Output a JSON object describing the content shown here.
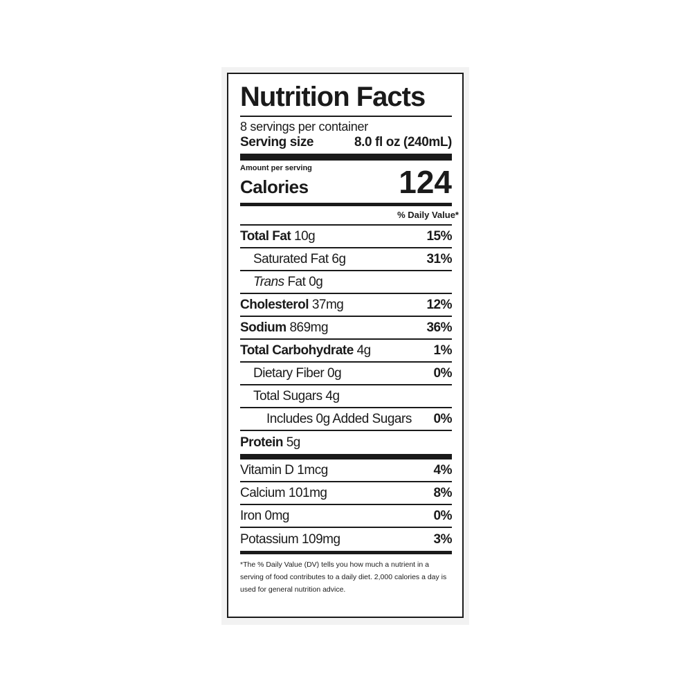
{
  "title": "Nutrition Facts",
  "servings": "8 servings per container",
  "serving_size": {
    "label": "Serving size",
    "value": "8.0 fl oz (240mL)"
  },
  "amount_per_serving": "Amount per serving",
  "calories": {
    "label": "Calories",
    "value": "124"
  },
  "dv_header": "% Daily Value*",
  "nutrients": [
    {
      "name": "Total Fat",
      "amount": "10g",
      "dv": "15%",
      "bold": true,
      "indent": 0
    },
    {
      "name": "Saturated Fat",
      "amount": "6g",
      "dv": "31%",
      "bold": false,
      "indent": 1
    },
    {
      "italic": "Trans",
      "name": "Fat",
      "amount": "0g",
      "bold": false,
      "indent": 1
    },
    {
      "name": "Cholesterol",
      "amount": "37mg",
      "dv": "12%",
      "bold": true,
      "indent": 0
    },
    {
      "name": "Sodium",
      "amount": "869mg",
      "dv": "36%",
      "bold": true,
      "indent": 0
    },
    {
      "name": "Total Carbohydrate",
      "amount": "4g",
      "dv": "1%",
      "bold": true,
      "indent": 0
    },
    {
      "name": "Dietary Fiber",
      "amount": "0g",
      "dv": "0%",
      "bold": false,
      "indent": 1
    },
    {
      "name": "Total Sugars",
      "amount": "4g",
      "bold": false,
      "indent": 1
    },
    {
      "name": "Includes 0g Added Sugars",
      "dv": "0%",
      "bold": false,
      "indent": 2
    },
    {
      "name": "Protein",
      "amount": "5g",
      "bold": true,
      "indent": 0
    }
  ],
  "vitamins": [
    {
      "name": "Vitamin D",
      "amount": "1mcg",
      "dv": "4%"
    },
    {
      "name": "Calcium",
      "amount": "101mg",
      "dv": "8%"
    },
    {
      "name": "Iron",
      "amount": "0mg",
      "dv": "0%"
    },
    {
      "name": "Potassium",
      "amount": "109mg",
      "dv": "3%"
    }
  ],
  "footnote": "*The % Daily Value (DV) tells you how much a nutrient in a serving of food contributes to a daily diet. 2,000 calories a day is used for general nutrition advice."
}
